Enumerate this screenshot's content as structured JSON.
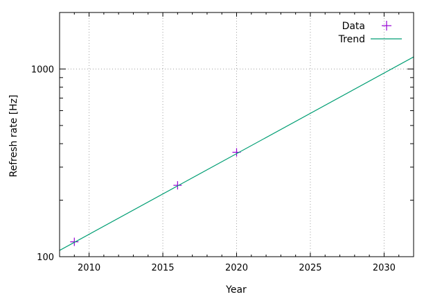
{
  "chart_data": {
    "type": "scatter",
    "xlabel": "Year",
    "ylabel": "Refresh rate [Hz]",
    "xlim": [
      2008,
      2032
    ],
    "ylim": [
      100,
      2000
    ],
    "yscale": "log",
    "grid": true,
    "legend_position": "top-right",
    "x_ticks": [
      2010,
      2015,
      2020,
      2025,
      2030
    ],
    "y_ticks": [
      100,
      1000
    ],
    "series": [
      {
        "name": "Data",
        "kind": "points",
        "marker": "+",
        "color": "#9400d3",
        "points": [
          {
            "x": 2009,
            "y": 120
          },
          {
            "x": 2016,
            "y": 240
          },
          {
            "x": 2020,
            "y": 360
          }
        ]
      },
      {
        "name": "Trend",
        "kind": "line",
        "color": "#009e73",
        "points": [
          {
            "x": 2008,
            "y": 108
          },
          {
            "x": 2032,
            "y": 1160
          }
        ]
      }
    ]
  }
}
